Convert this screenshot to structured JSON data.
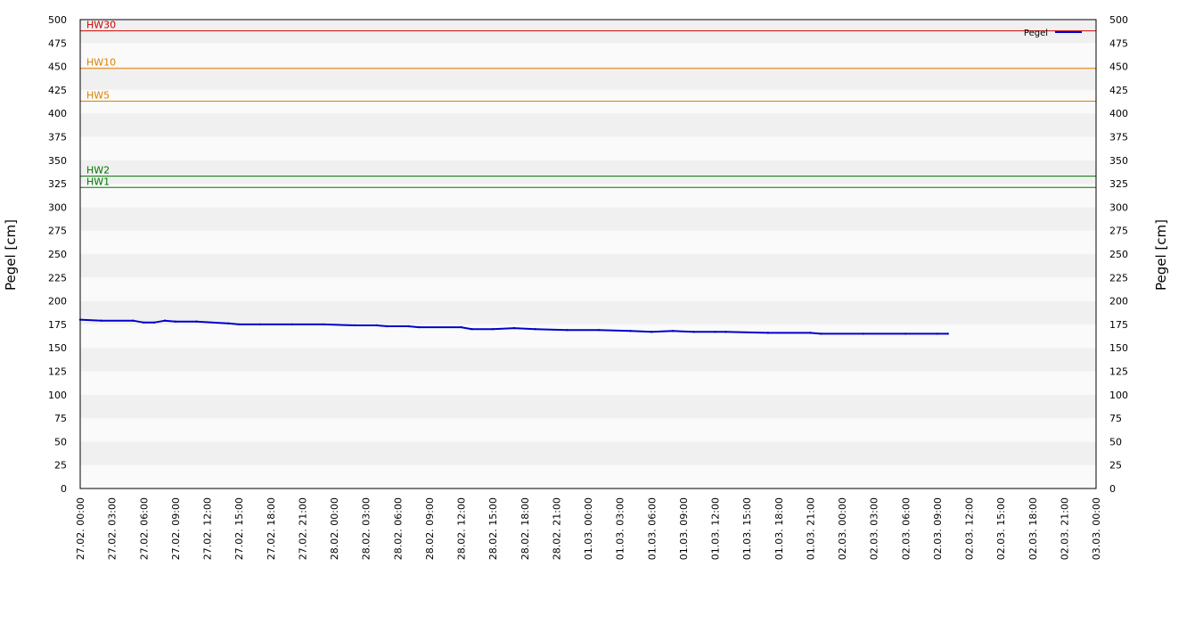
{
  "chart_data": {
    "type": "line",
    "ylabel_left": "Pegel [cm]",
    "ylabel_right": "Pegel [cm]",
    "ylim": [
      0,
      500
    ],
    "y_ticks": [
      0,
      25,
      50,
      75,
      100,
      125,
      150,
      175,
      200,
      225,
      250,
      275,
      300,
      325,
      350,
      375,
      400,
      425,
      450,
      475,
      500
    ],
    "x_ticks": [
      "27.02. 00:00",
      "27.02. 03:00",
      "27.02. 06:00",
      "27.02. 09:00",
      "27.02. 12:00",
      "27.02. 15:00",
      "27.02. 18:00",
      "27.02. 21:00",
      "28.02. 00:00",
      "28.02. 03:00",
      "28.02. 06:00",
      "28.02. 09:00",
      "28.02. 12:00",
      "28.02. 15:00",
      "28.02. 18:00",
      "28.02. 21:00",
      "01.03. 00:00",
      "01.03. 03:00",
      "01.03. 06:00",
      "01.03. 09:00",
      "01.03. 12:00",
      "01.03. 15:00",
      "01.03. 18:00",
      "01.03. 21:00",
      "02.03. 00:00",
      "02.03. 03:00",
      "02.03. 06:00",
      "02.03. 09:00",
      "02.03. 12:00",
      "02.03. 15:00",
      "02.03. 18:00",
      "02.03. 21:00",
      "03.03. 00:00"
    ],
    "grid": "horizontal alternating bands",
    "legend": {
      "position": "top-right",
      "entries": [
        "Pegel"
      ]
    },
    "thresholds": [
      {
        "name": "HW30",
        "value": 488,
        "color": "#cc0000"
      },
      {
        "name": "HW10",
        "value": 448,
        "color": "#e08000"
      },
      {
        "name": "HW5",
        "value": 413,
        "color": "#e08000"
      },
      {
        "name": "HW2",
        "value": 333,
        "color": "#007700"
      },
      {
        "name": "HW1",
        "value": 321,
        "color": "#007700"
      }
    ],
    "series": [
      {
        "name": "Pegel",
        "color": "#0000cc",
        "x": [
          "27.02. 00:00",
          "27.02. 02:00",
          "27.02. 05:00",
          "27.02. 06:00",
          "27.02. 07:00",
          "27.02. 08:00",
          "27.02. 09:00",
          "27.02. 11:00",
          "27.02. 14:00",
          "27.02. 15:00",
          "27.02. 17:00",
          "27.02. 20:00",
          "27.02. 23:00",
          "28.02. 02:00",
          "28.02. 04:00",
          "28.02. 05:00",
          "28.02. 07:00",
          "28.02. 08:00",
          "28.02. 12:00",
          "28.02. 13:00",
          "28.02. 15:00",
          "28.02. 17:00",
          "28.02. 19:00",
          "28.02. 22:00",
          "01.03. 01:00",
          "01.03. 04:00",
          "01.03. 06:00",
          "01.03. 08:00",
          "01.03. 10:00",
          "01.03. 12:00",
          "01.03. 13:00",
          "01.03. 17:00",
          "01.03. 21:00",
          "01.03. 22:00",
          "02.03. 02:00",
          "02.03. 06:00",
          "02.03. 09:00",
          "02.03. 10:00"
        ],
        "values": [
          180,
          179,
          179,
          177,
          177,
          179,
          178,
          178,
          176,
          175,
          175,
          175,
          175,
          174,
          174,
          173,
          173,
          172,
          172,
          170,
          170,
          171,
          170,
          169,
          169,
          168,
          167,
          168,
          167,
          167,
          167,
          166,
          166,
          165,
          165,
          165,
          165,
          165
        ]
      }
    ]
  }
}
